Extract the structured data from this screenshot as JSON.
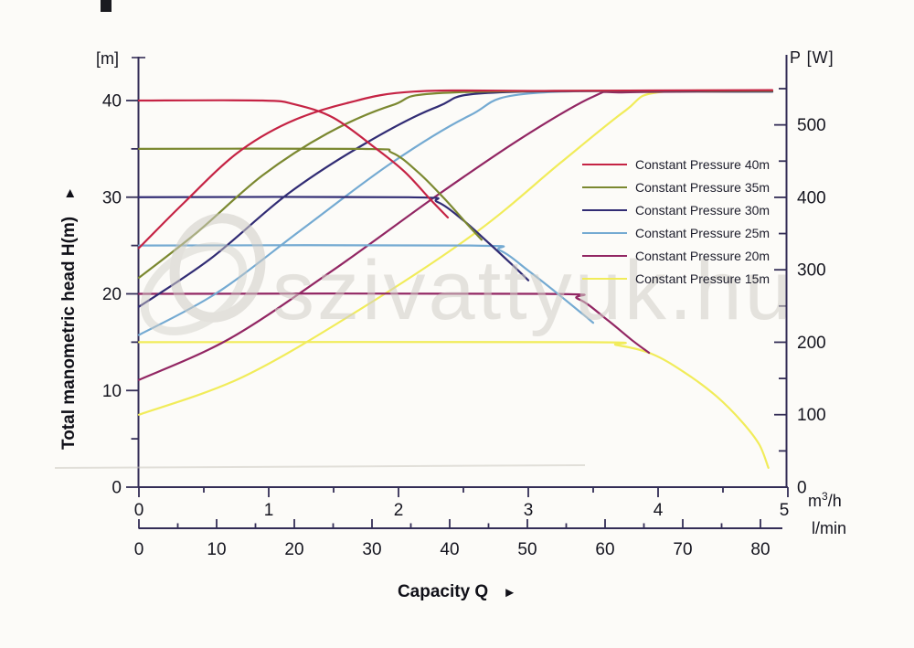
{
  "watermark": {
    "text": "szivattyuk.hu"
  },
  "labels": {
    "y_left_unit": "[m]",
    "y_axis_title": "Total manometric head H(m)",
    "y_axis_title_arrow": "►",
    "y_right_title": "P [W]",
    "x_unit_base": "m",
    "x_unit_sup": "3",
    "x_unit_rest": "/h",
    "x_unit_secondary": "l/min",
    "x_title": "Capacity Q",
    "x_title_arrow": "►"
  },
  "chart_data": {
    "type": "line",
    "title": "",
    "x_axis_primary": {
      "label": "m³/h",
      "range": [
        0,
        5
      ],
      "major_ticks": [
        0,
        1,
        2,
        3,
        4,
        5
      ],
      "minor_step": 0.5
    },
    "x_axis_secondary": {
      "label": "l/min",
      "range": [
        0,
        82.5
      ],
      "major_ticks": [
        0,
        10,
        20,
        30,
        40,
        50,
        60,
        70,
        80
      ],
      "minor_step": 5
    },
    "y_axis_left": {
      "label": "Total manometric head H(m)",
      "unit": "m",
      "range": [
        0,
        44.5
      ],
      "major_ticks": [
        0,
        10,
        20,
        30,
        40
      ],
      "minor_ticks": [
        5,
        15,
        25,
        35
      ]
    },
    "y_axis_right": {
      "label": "P [W]",
      "unit": "W",
      "range": [
        0,
        555
      ],
      "major_ticks": [
        0,
        100,
        200,
        300,
        400,
        500
      ],
      "minor_ticks": [
        50,
        150,
        250,
        350,
        450,
        550
      ]
    },
    "grid": false,
    "legend_position": "top-right",
    "axis_color": "#332d56",
    "series": [
      {
        "name": "Constant Pressure 40m",
        "color": "#c52344",
        "head_curve_QH": [
          [
            0,
            40
          ],
          [
            0.95,
            40
          ],
          [
            1.2,
            39.6
          ],
          [
            1.5,
            38.2
          ],
          [
            1.83,
            35
          ],
          [
            2.05,
            32.6
          ],
          [
            2.25,
            29.7
          ],
          [
            2.38,
            27.9
          ]
        ],
        "power_curve_QW": [
          [
            0,
            330
          ],
          [
            0.35,
            393
          ],
          [
            0.75,
            460
          ],
          [
            1.15,
            503
          ],
          [
            1.6,
            530
          ],
          [
            2.12,
            546
          ],
          [
            3.2,
            547
          ],
          [
            4.88,
            548
          ]
        ]
      },
      {
        "name": "Constant Pressure 35m",
        "color": "#7b8830",
        "head_curve_QH": [
          [
            0,
            35
          ],
          [
            1.72,
            35
          ],
          [
            1.95,
            34.6
          ],
          [
            2.15,
            32.6
          ],
          [
            2.35,
            29.9
          ],
          [
            2.55,
            26.9
          ],
          [
            2.64,
            25.6
          ]
        ],
        "power_curve_QW": [
          [
            0,
            289
          ],
          [
            0.45,
            352
          ],
          [
            0.95,
            430
          ],
          [
            1.45,
            488
          ],
          [
            1.95,
            527
          ],
          [
            2.45,
            545
          ],
          [
            4.88,
            547
          ]
        ]
      },
      {
        "name": "Constant Pressure 30m",
        "color": "#312c74",
        "head_curve_QH": [
          [
            0,
            30
          ],
          [
            2.08,
            30
          ],
          [
            2.3,
            29.5
          ],
          [
            2.5,
            27.6
          ],
          [
            2.7,
            25.2
          ],
          [
            2.9,
            22.7
          ],
          [
            3.0,
            21.4
          ]
        ],
        "power_curve_QW": [
          [
            0,
            249
          ],
          [
            0.55,
            315
          ],
          [
            1.15,
            405
          ],
          [
            1.75,
            475
          ],
          [
            2.3,
            525
          ],
          [
            2.78,
            545
          ],
          [
            4.88,
            546
          ]
        ]
      },
      {
        "name": "Constant Pressure 25m",
        "color": "#74aad2",
        "head_curve_QH": [
          [
            0,
            25
          ],
          [
            2.55,
            25
          ],
          [
            2.78,
            24.5
          ],
          [
            3.0,
            22.4
          ],
          [
            3.2,
            20.3
          ],
          [
            3.42,
            17.9
          ],
          [
            3.5,
            17.0
          ]
        ],
        "power_curve_QW": [
          [
            0,
            210
          ],
          [
            0.6,
            268
          ],
          [
            1.25,
            355
          ],
          [
            1.95,
            448
          ],
          [
            2.55,
            513
          ],
          [
            3.05,
            544
          ],
          [
            4.88,
            546
          ]
        ]
      },
      {
        "name": "Constant Pressure 20m",
        "color": "#922663",
        "head_curve_QH": [
          [
            0,
            20
          ],
          [
            3.12,
            20
          ],
          [
            3.38,
            19.5
          ],
          [
            3.6,
            17.4
          ],
          [
            3.8,
            15.2
          ],
          [
            3.93,
            13.9
          ]
        ],
        "power_curve_QW": [
          [
            0,
            148
          ],
          [
            0.7,
            205
          ],
          [
            1.5,
            300
          ],
          [
            2.3,
            403
          ],
          [
            2.95,
            482
          ],
          [
            3.5,
            539
          ],
          [
            3.75,
            545
          ],
          [
            4.88,
            546
          ]
        ]
      },
      {
        "name": "Constant Pressure 15m",
        "color": "#f1ec5a",
        "head_curve_QH": [
          [
            0,
            15
          ],
          [
            3.42,
            15
          ],
          [
            3.68,
            14.7
          ],
          [
            3.95,
            13.8
          ],
          [
            4.2,
            11.9
          ],
          [
            4.45,
            9.4
          ],
          [
            4.65,
            6.7
          ],
          [
            4.78,
            4.4
          ],
          [
            4.85,
            2.0
          ]
        ],
        "power_curve_QW": [
          [
            0,
            100
          ],
          [
            0.8,
            152
          ],
          [
            1.7,
            245
          ],
          [
            2.6,
            352
          ],
          [
            3.25,
            448
          ],
          [
            3.75,
            520
          ],
          [
            4.0,
            545
          ],
          [
            4.85,
            547
          ]
        ]
      }
    ]
  }
}
